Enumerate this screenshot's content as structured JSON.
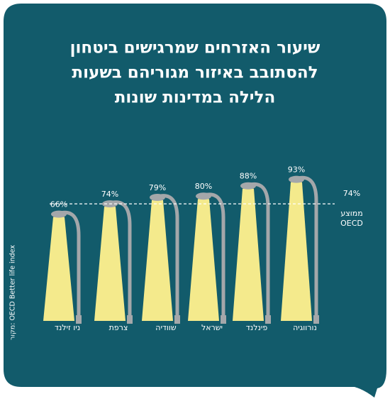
{
  "chart_data": {
    "type": "lamp",
    "title_lines": [
      "שיעור האזרחים שמרגישים ביטחון",
      "להסתובב באיזור מגוריהם בשעות",
      "הלילה במדינות שונות"
    ],
    "categories": [
      "ניו זילנד",
      "צרפת",
      "שוודיה",
      "ישראל",
      "פינלנד",
      "נורווגיה"
    ],
    "values": [
      66,
      74,
      79,
      80,
      88,
      93
    ],
    "value_labels": [
      "66%",
      "74%",
      "79%",
      "80%",
      "88%",
      "93%"
    ],
    "color": "#f4ea8c",
    "ylim": [
      -17,
      100
    ],
    "reference": {
      "value": 74,
      "value_label": "74%",
      "label_lines": [
        "ממוצע",
        "OECD"
      ]
    },
    "source": "מקור: OECD Better life index"
  }
}
